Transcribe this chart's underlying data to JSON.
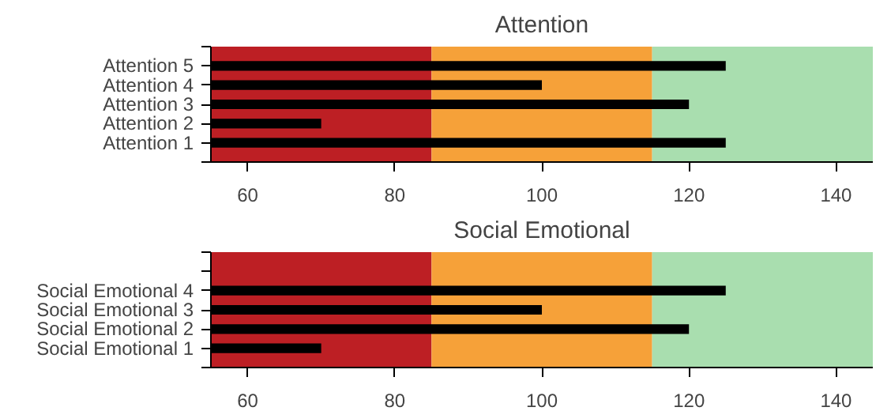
{
  "chart_data": [
    {
      "type": "bar",
      "orientation": "horizontal",
      "title": "Attention",
      "categories": [
        null,
        "Attention 5",
        "Attention 4",
        "Attention 3",
        "Attention 2",
        "Attention 1",
        null
      ],
      "values": [
        null,
        125,
        100,
        120,
        70,
        125,
        null
      ],
      "color": "#000000",
      "xlim": [
        55,
        145
      ],
      "xticks": [
        60,
        80,
        100,
        120,
        140
      ],
      "grid": false,
      "bands": [
        {
          "axis": "x",
          "from": 55,
          "to": 85,
          "color": "#bd1f24"
        },
        {
          "axis": "x",
          "from": 85,
          "to": 115,
          "color": "#f6a139"
        },
        {
          "axis": "x",
          "from": 115,
          "to": 145,
          "color": "#a9deaf"
        }
      ]
    },
    {
      "type": "bar",
      "orientation": "horizontal",
      "title": "Social Emotional",
      "categories": [
        null,
        null,
        "Social Emotional 4",
        "Social Emotional 3",
        "Social Emotional 2",
        "Social Emotional 1",
        null
      ],
      "values": [
        null,
        null,
        125,
        100,
        120,
        70,
        null
      ],
      "color": "#000000",
      "xlim": [
        55,
        145
      ],
      "xticks": [
        60,
        80,
        100,
        120,
        140
      ],
      "grid": false,
      "bands": [
        {
          "axis": "x",
          "from": 55,
          "to": 85,
          "color": "#bd1f24"
        },
        {
          "axis": "x",
          "from": 85,
          "to": 115,
          "color": "#f6a139"
        },
        {
          "axis": "x",
          "from": 115,
          "to": 145,
          "color": "#a9deaf"
        }
      ]
    }
  ]
}
